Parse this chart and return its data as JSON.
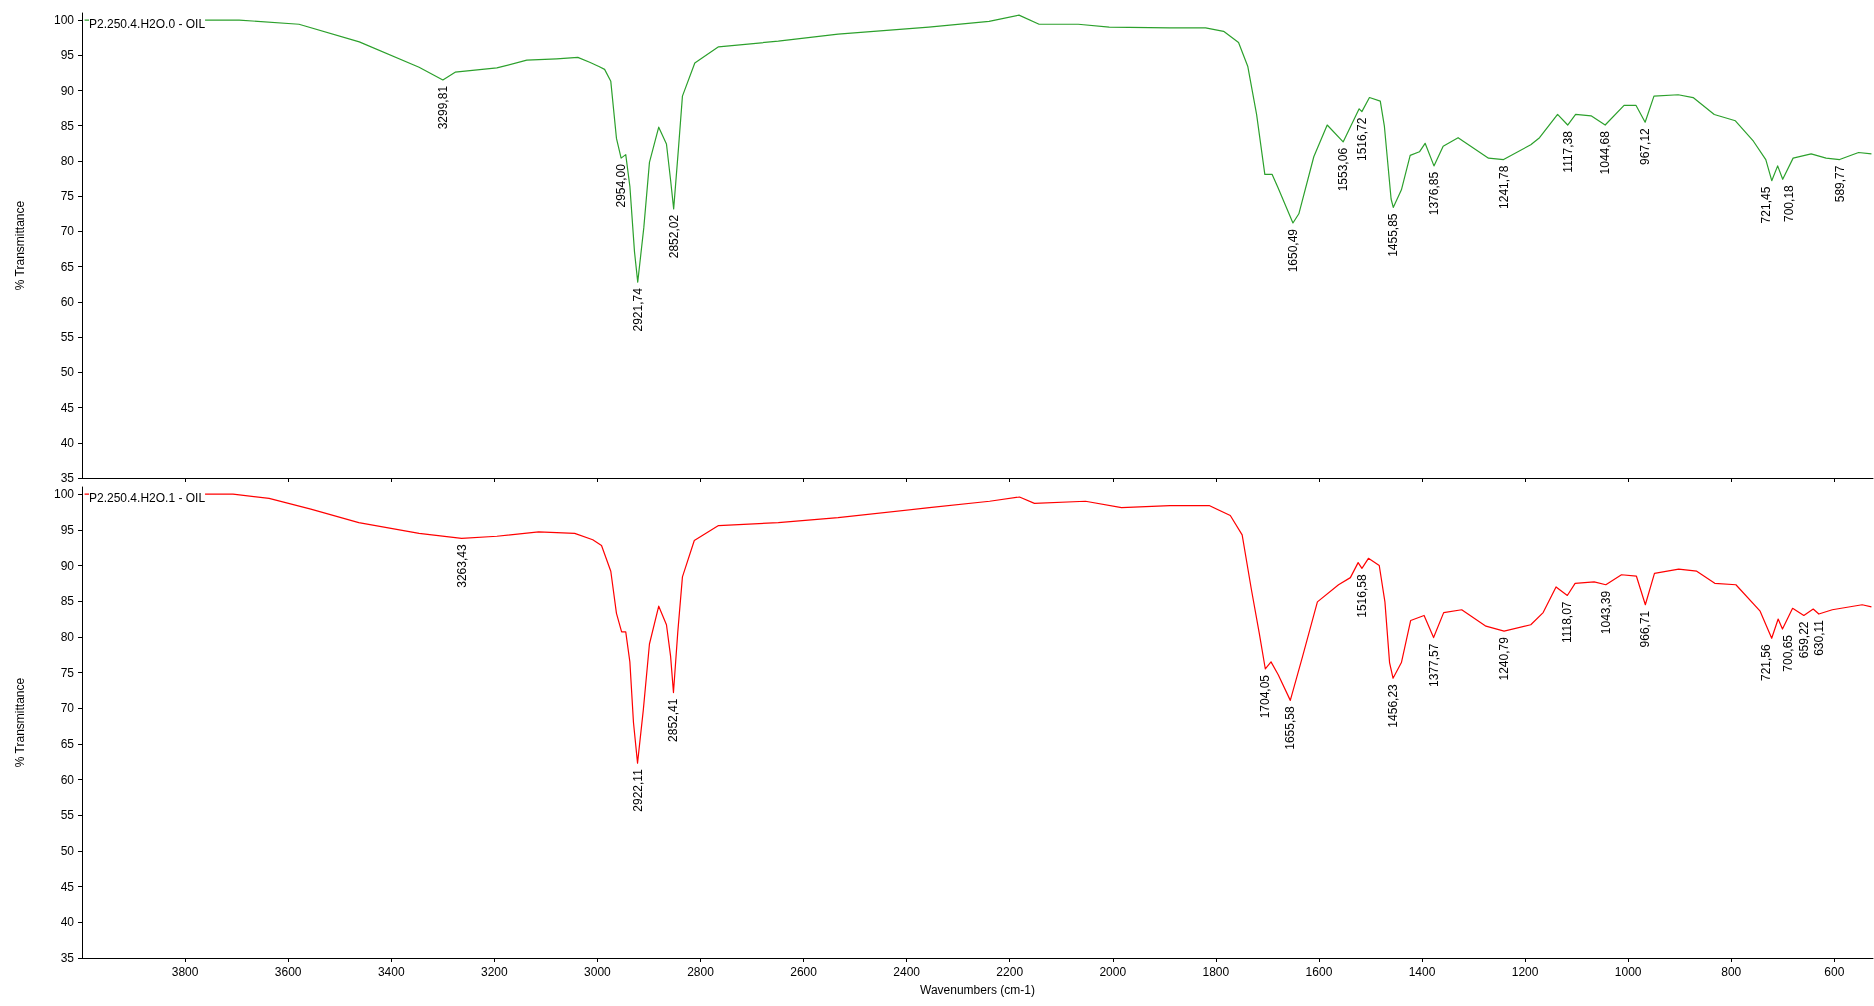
{
  "chart_data": [
    {
      "type": "line",
      "ylabel": "% Transmittance",
      "legend": "top left",
      "marker": "none",
      "line_style": "solid",
      "grid": false,
      "tick_labels": "y",
      "xlim": [
        4000,
        525
      ],
      "xticks": [
        3800,
        3600,
        3400,
        3200,
        3000,
        2800,
        2600,
        2400,
        2200,
        2000,
        1800,
        1600,
        1400,
        1200,
        1000,
        800,
        600
      ],
      "ylim": [
        35,
        101
      ],
      "yticks": [
        35,
        40,
        45,
        50,
        55,
        60,
        65,
        70,
        75,
        80,
        85,
        90,
        95,
        100
      ],
      "series": [
        {
          "name": "P2.250.4.H2O.0 - OIL",
          "color": "#2ca02c",
          "x": [
            3995,
            3695,
            3579,
            3462,
            3346,
            3299.81,
            3276,
            3195,
            3137,
            3079,
            3038,
            3015,
            2997,
            2986,
            2974,
            2963,
            2954,
            2945,
            2937,
            2928,
            2921.74,
            2910,
            2899,
            2881,
            2866,
            2858,
            2852.02,
            2843,
            2835,
            2811,
            2765,
            2649,
            2533,
            2357,
            2240,
            2182,
            2143,
            2067,
            2007,
            1890,
            1820,
            1785,
            1756,
            1738,
            1721,
            1705,
            1691,
            1680,
            1650.49,
            1639,
            1610,
            1584,
            1553.06,
            1522,
            1516.72,
            1502,
            1481,
            1473,
            1460,
            1455.85,
            1440,
            1423,
            1405,
            1394,
            1376.85,
            1359,
            1330,
            1271,
            1241.78,
            1189,
            1172,
            1137,
            1117.38,
            1102,
            1072,
            1044.68,
            1008,
            985,
            967.12,
            950,
            903,
            874,
            833,
            792,
            757,
            733,
            721.45,
            710,
            700.18,
            680,
            645,
            616,
            589.77,
            553,
            528
          ],
          "values": [
            100,
            100,
            99.4,
            96.9,
            93.3,
            91.5,
            92.6,
            93.2,
            94.3,
            94.5,
            94.7,
            94.0,
            93.4,
            93.0,
            91.3,
            83.2,
            80.4,
            80.9,
            76.4,
            67.1,
            62.8,
            70.5,
            79.8,
            84.8,
            82.4,
            77.3,
            73.2,
            81.5,
            89.2,
            93.9,
            96.2,
            97.0,
            98.0,
            99.0,
            99.8,
            100.7,
            99.4,
            99.4,
            99.0,
            98.9,
            98.9,
            98.4,
            96.8,
            93.4,
            86.6,
            78.1,
            78.1,
            76.3,
            71.2,
            72.5,
            80.6,
            85.1,
            82.7,
            87.4,
            87.0,
            89.0,
            88.5,
            84.9,
            74.6,
            73.4,
            75.9,
            80.8,
            81.3,
            82.5,
            79.3,
            82.1,
            83.3,
            80.4,
            80.2,
            82.3,
            83.3,
            86.6,
            85.1,
            86.6,
            86.4,
            85.1,
            87.9,
            87.9,
            85.5,
            89.2,
            89.4,
            89.0,
            86.6,
            85.7,
            82.8,
            80.2,
            77.2,
            79.3,
            77.4,
            80.4,
            81.0,
            80.4,
            80.2,
            81.2,
            81.0
          ]
        }
      ],
      "annotations": [
        {
          "text": "3299,81",
          "x": 3299.81,
          "y": 91.5
        },
        {
          "text": "2954,00",
          "x": 2954.0,
          "y": 80.4
        },
        {
          "text": "2921,74",
          "x": 2921.74,
          "y": 62.8
        },
        {
          "text": "2852,02",
          "x": 2852.02,
          "y": 73.2
        },
        {
          "text": "1650,49",
          "x": 1650.49,
          "y": 71.2
        },
        {
          "text": "1553,06",
          "x": 1553.06,
          "y": 82.7
        },
        {
          "text": "1516,72",
          "x": 1516.72,
          "y": 87.0
        },
        {
          "text": "1455,85",
          "x": 1455.85,
          "y": 73.4
        },
        {
          "text": "1376,85",
          "x": 1376.85,
          "y": 79.3
        },
        {
          "text": "1241,78",
          "x": 1241.78,
          "y": 80.2
        },
        {
          "text": "1117,38",
          "x": 1117.38,
          "y": 85.1
        },
        {
          "text": "1044,68",
          "x": 1044.68,
          "y": 85.1
        },
        {
          "text": "967,12",
          "x": 967.12,
          "y": 85.5
        },
        {
          "text": "721,45",
          "x": 721.45,
          "y": 77.2
        },
        {
          "text": "700,18",
          "x": 700.18,
          "y": 77.4
        },
        {
          "text": "589,77",
          "x": 589.77,
          "y": 80.2
        }
      ]
    },
    {
      "type": "line",
      "ylabel": "% Transmittance",
      "xlabel": "Wavenumbers (cm-1)",
      "legend": "top left",
      "marker": "none",
      "line_style": "solid",
      "grid": false,
      "xlim": [
        4000,
        525
      ],
      "xticks": [
        3800,
        3600,
        3400,
        3200,
        3000,
        2800,
        2600,
        2400,
        2200,
        2000,
        1800,
        1600,
        1400,
        1200,
        1000,
        800,
        600
      ],
      "ylim": [
        35,
        101
      ],
      "yticks": [
        35,
        40,
        45,
        50,
        55,
        60,
        65,
        70,
        75,
        80,
        85,
        90,
        95,
        100
      ],
      "series": [
        {
          "name": "P2.250.4.H2O.1 - OIL",
          "color": "#ff0000",
          "x": [
            3995,
            3707,
            3637,
            3556,
            3463,
            3346,
            3263.43,
            3195,
            3114,
            3044,
            3009,
            2992,
            2974,
            2963,
            2953,
            2945,
            2937,
            2930,
            2922.11,
            2911,
            2899,
            2881,
            2866,
            2858,
            2852.41,
            2844,
            2835,
            2812,
            2765,
            2649,
            2533,
            2356,
            2239,
            2181,
            2152,
            2053,
            1983,
            1889,
            1813,
            1772,
            1749,
            1731,
            1716,
            1704.05,
            1693,
            1679,
            1655.58,
            1632,
            1603,
            1562,
            1539,
            1524,
            1516.58,
            1504,
            1483,
            1472,
            1463,
            1456.23,
            1440,
            1422,
            1396,
            1377.57,
            1358,
            1323,
            1276,
            1240.79,
            1189,
            1165,
            1140,
            1118.07,
            1103,
            1066,
            1043.39,
            1013,
            984,
            966.71,
            949,
            902,
            867,
            832,
            791,
            744,
            721.56,
            709,
            700.65,
            681,
            659.22,
            641,
            630.11,
            604,
            546,
            528
          ],
          "values": [
            100,
            100,
            99.4,
            97.9,
            96.0,
            94.5,
            93.8,
            94.1,
            94.7,
            94.5,
            93.6,
            92.8,
            89.2,
            83.3,
            80.7,
            80.7,
            76.5,
            68.0,
            62.3,
            69.7,
            79.0,
            84.3,
            81.7,
            77.3,
            72.2,
            80.7,
            88.4,
            93.5,
            95.6,
            96.0,
            96.7,
            98.1,
            99.0,
            99.6,
            98.7,
            99.0,
            98.1,
            98.4,
            98.4,
            97.0,
            94.3,
            86.6,
            80.6,
            75.5,
            76.5,
            74.7,
            71.1,
            77.2,
            84.9,
            87.3,
            88.3,
            90.4,
            89.6,
            91.0,
            90.0,
            84.9,
            76.4,
            74.2,
            76.4,
            82.3,
            83.0,
            79.9,
            83.4,
            83.8,
            81.5,
            80.8,
            81.7,
            83.4,
            87.0,
            85.8,
            87.5,
            87.7,
            87.3,
            88.7,
            88.5,
            84.5,
            88.9,
            89.5,
            89.2,
            87.5,
            87.3,
            83.6,
            79.8,
            82.5,
            81.1,
            84.0,
            83.0,
            83.9,
            83.2,
            83.8,
            84.5,
            84.2
          ]
        }
      ],
      "annotations": [
        {
          "text": "3263,43",
          "x": 3263.43,
          "y": 93.8
        },
        {
          "text": "2922,11",
          "x": 2922.11,
          "y": 62.3
        },
        {
          "text": "2852,41",
          "x": 2852.41,
          "y": 72.2
        },
        {
          "text": "1704,05",
          "x": 1704.05,
          "y": 75.5
        },
        {
          "text": "1655,58",
          "x": 1655.58,
          "y": 71.1
        },
        {
          "text": "1516,58",
          "x": 1516.58,
          "y": 89.6
        },
        {
          "text": "1456,23",
          "x": 1456.23,
          "y": 74.2
        },
        {
          "text": "1377,57",
          "x": 1377.57,
          "y": 79.9
        },
        {
          "text": "1240,79",
          "x": 1240.79,
          "y": 80.8
        },
        {
          "text": "1118,07",
          "x": 1118.07,
          "y": 85.8
        },
        {
          "text": "1043,39",
          "x": 1043.39,
          "y": 87.3
        },
        {
          "text": "966,71",
          "x": 966.71,
          "y": 84.5
        },
        {
          "text": "721,56",
          "x": 721.56,
          "y": 79.8
        },
        {
          "text": "700,65",
          "x": 700.65,
          "y": 81.1
        },
        {
          "text": "659,22",
          "x": 659.22,
          "y": 83.0
        },
        {
          "text": "630,11",
          "x": 630.11,
          "y": 83.2
        }
      ]
    }
  ]
}
